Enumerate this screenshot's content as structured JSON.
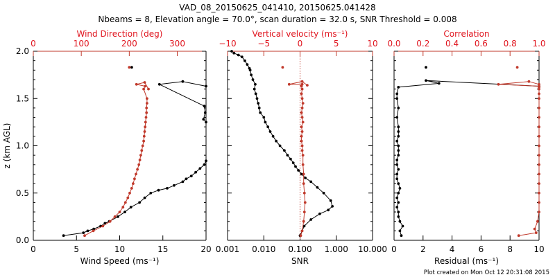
{
  "header": {
    "title": "VAD_08_20150625_041410, 20150625.041428",
    "subtitle": "Nbeams = 8, Elevation angle = 70.0°, scan duration = 32.0 s, SNR Threshold = 0.008"
  },
  "footer": {
    "note": "Plot created on Mon Oct 12 20:31:08 2015"
  },
  "colors": {
    "black": "#000000",
    "red": "#c0392b",
    "accent": "#e0141e"
  },
  "chart_data": [
    {
      "type": "scatter",
      "ylabel": "z (km AGL)",
      "ylim": [
        0,
        2.0
      ],
      "yticks": [
        "0.0",
        "0.5",
        "1.0",
        "1.5",
        "2.0"
      ],
      "xlabel": "Wind Speed (ms⁻¹)",
      "xlim": [
        0,
        20
      ],
      "xticks": [
        "0",
        "5",
        "10",
        "15",
        "20"
      ],
      "top_xlabel": "Wind Direction (deg)",
      "top_xlim": [
        0,
        360
      ],
      "top_xticks": [
        "0",
        "100",
        "200",
        "300"
      ],
      "top_xtick_values": [
        0,
        100,
        200,
        300
      ],
      "series": [
        {
          "axis": "bottom",
          "color": "#000000",
          "x": [
            3.5,
            5.8,
            6.3,
            7.0,
            7.8,
            8.3,
            8.8,
            9.8,
            10.6,
            11.3,
            12.3,
            12.9,
            13.6,
            14.5,
            15.5,
            16.3,
            17.3,
            17.7,
            18.3,
            18.8,
            19.3,
            19.8,
            20.0,
            20.0,
            19.7,
            19.9,
            19.8,
            14.6,
            17.3,
            20.0,
            11.4
          ],
          "y": [
            0.05,
            0.08,
            0.1,
            0.12,
            0.15,
            0.18,
            0.2,
            0.25,
            0.3,
            0.35,
            0.4,
            0.45,
            0.5,
            0.53,
            0.55,
            0.58,
            0.62,
            0.65,
            0.68,
            0.72,
            0.76,
            0.8,
            0.84,
            1.25,
            1.28,
            1.35,
            1.42,
            1.65,
            1.68,
            1.63,
            1.83
          ]
        },
        {
          "axis": "top",
          "color": "#c0392b",
          "x": [
            107,
            125,
            145,
            160,
            170,
            180,
            187,
            192,
            197,
            201,
            205,
            208,
            211,
            214,
            217,
            220,
            222,
            224,
            226,
            228,
            230,
            231,
            232,
            233,
            234,
            235,
            236,
            236,
            237,
            237,
            230,
            233,
            215,
            232,
            240,
            200
          ],
          "y": [
            0.05,
            0.1,
            0.15,
            0.2,
            0.25,
            0.3,
            0.35,
            0.4,
            0.45,
            0.5,
            0.55,
            0.6,
            0.65,
            0.7,
            0.75,
            0.8,
            0.85,
            0.9,
            0.95,
            1.0,
            1.05,
            1.1,
            1.15,
            1.2,
            1.25,
            1.3,
            1.35,
            1.4,
            1.45,
            1.5,
            1.6,
            1.63,
            1.65,
            1.67,
            1.6,
            1.83
          ]
        }
      ]
    },
    {
      "type": "scatter",
      "ylim": [
        0,
        2.0
      ],
      "xlabel": "SNR",
      "xscale": "log",
      "xlim": [
        0.001,
        10
      ],
      "xticks": [
        "0.001",
        "0.010",
        "0.100",
        "1.000",
        "10.000"
      ],
      "top_xlabel": "Vertical velocity (ms⁻¹)",
      "top_xlim": [
        -10,
        10
      ],
      "top_xticks": [
        "−10",
        "−5",
        "0",
        "5",
        "10"
      ],
      "top_xtick_values": [
        -10,
        -5,
        0,
        5,
        10
      ],
      "zero_line": 0,
      "series": [
        {
          "axis": "bottom",
          "color": "#000000",
          "x": [
            0.1,
            0.13,
            0.2,
            0.35,
            0.6,
            0.78,
            0.7,
            0.45,
            0.3,
            0.2,
            0.14,
            0.11,
            0.09,
            0.075,
            0.065,
            0.055,
            0.045,
            0.037,
            0.028,
            0.022,
            0.018,
            0.015,
            0.013,
            0.011,
            0.01,
            0.008,
            0.0075,
            0.007,
            0.0065,
            0.006,
            0.0055,
            0.0058,
            0.005,
            0.0045,
            0.0042,
            0.004,
            0.0035,
            0.003,
            0.0025,
            0.002,
            0.0015,
            0.0013
          ],
          "y": [
            0.05,
            0.15,
            0.22,
            0.28,
            0.32,
            0.36,
            0.42,
            0.5,
            0.56,
            0.62,
            0.66,
            0.7,
            0.74,
            0.78,
            0.82,
            0.86,
            0.9,
            0.95,
            1.0,
            1.05,
            1.1,
            1.15,
            1.2,
            1.25,
            1.3,
            1.35,
            1.4,
            1.45,
            1.5,
            1.55,
            1.6,
            1.65,
            1.7,
            1.75,
            1.8,
            1.82,
            1.86,
            1.9,
            1.94,
            1.96,
            1.98,
            2.0
          ]
        },
        {
          "axis": "top",
          "color": "#c0392b",
          "x": [
            0.1,
            0.3,
            0.5,
            0.6,
            0.7,
            0.6,
            0.5,
            0.5,
            0.4,
            0.4,
            0.3,
            0.3,
            0.2,
            0.2,
            0.3,
            0.2,
            0.4,
            0.3,
            0.2,
            0.3,
            0.4,
            0.3,
            0.2,
            0.3,
            0.2,
            0.3,
            -1.5,
            0.3,
            1.0,
            -2.4
          ],
          "y": [
            0.05,
            0.1,
            0.2,
            0.3,
            0.4,
            0.5,
            0.6,
            0.7,
            0.8,
            0.9,
            0.95,
            1.0,
            1.05,
            1.1,
            1.15,
            1.2,
            1.25,
            1.3,
            1.35,
            1.4,
            1.45,
            1.5,
            1.55,
            1.6,
            1.63,
            1.65,
            1.65,
            1.68,
            1.64,
            1.83
          ]
        }
      ]
    },
    {
      "type": "scatter",
      "ylim": [
        0,
        2.0
      ],
      "xlabel": "Residual (ms⁻¹)",
      "xlim": [
        0,
        10
      ],
      "xticks": [
        "0",
        "2",
        "4",
        "6",
        "8",
        "10"
      ],
      "top_xlabel": "Correlation",
      "top_xlim": [
        0.0,
        1.0
      ],
      "top_xticks": [
        "0.0",
        "0.2",
        "0.4",
        "0.6",
        "0.8",
        "1.0"
      ],
      "top_xtick_values": [
        0.0,
        0.2,
        0.4,
        0.6,
        0.8,
        1.0
      ],
      "series": [
        {
          "axis": "bottom",
          "color": "#000000",
          "x": [
            0.5,
            0.4,
            0.6,
            0.4,
            0.3,
            0.3,
            0.2,
            0.3,
            0.2,
            0.3,
            0.4,
            0.3,
            0.2,
            0.2,
            0.3,
            0.2,
            0.2,
            0.3,
            0.3,
            0.3,
            0.2,
            0.3,
            0.3,
            0.3,
            0.2,
            0.3,
            0.2,
            0.2,
            0.3,
            3.1,
            2.2,
            10.0,
            2.2
          ],
          "y": [
            0.05,
            0.1,
            0.15,
            0.2,
            0.25,
            0.3,
            0.35,
            0.4,
            0.45,
            0.5,
            0.55,
            0.6,
            0.65,
            0.7,
            0.75,
            0.8,
            0.85,
            0.9,
            0.95,
            1.0,
            1.05,
            1.1,
            1.15,
            1.2,
            1.3,
            1.4,
            1.5,
            1.55,
            1.62,
            1.66,
            1.69,
            1.63,
            1.83
          ]
        },
        {
          "axis": "top",
          "color": "#c0392b",
          "x": [
            0.86,
            0.98,
            0.97,
            0.99,
            1.0,
            1.0,
            1.0,
            1.0,
            1.0,
            1.0,
            1.0,
            1.0,
            1.0,
            1.0,
            1.0,
            1.0,
            1.0,
            1.0,
            1.0,
            1.0,
            1.0,
            0.72,
            0.93,
            1.0,
            0.85
          ],
          "y": [
            0.05,
            0.08,
            0.12,
            0.2,
            0.3,
            0.4,
            0.5,
            0.6,
            0.7,
            0.8,
            0.9,
            1.0,
            1.1,
            1.2,
            1.3,
            1.4,
            1.5,
            1.55,
            1.6,
            1.62,
            1.63,
            1.65,
            1.68,
            1.65,
            1.83
          ]
        }
      ]
    }
  ]
}
